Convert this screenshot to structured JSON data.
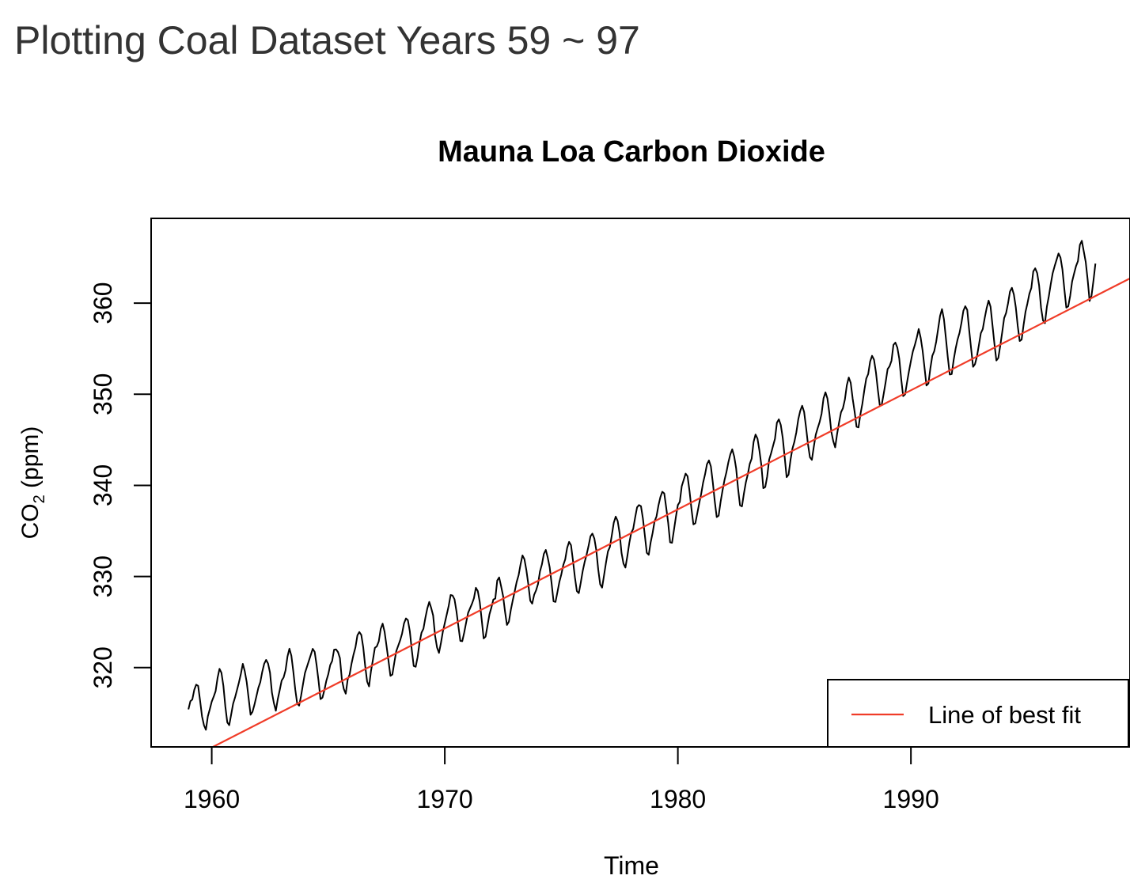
{
  "page": {
    "heading": "Plotting Coal Dataset Years 59 ~ 97"
  },
  "chart_data": {
    "type": "line",
    "title": "Mauna Loa Carbon Dioxide",
    "xlabel": "Time",
    "ylabel": "CO₂ (ppm)",
    "ylabel_parts": {
      "pre": "CO",
      "sub": "2",
      "post": " (ppm)"
    },
    "xlim": [
      1957.4,
      1999.4
    ],
    "ylim": [
      311.3,
      369.3
    ],
    "x_ticks": [
      1960,
      1970,
      1980,
      1990
    ],
    "y_ticks": [
      320,
      330,
      340,
      350,
      360
    ],
    "grid": false,
    "legend": {
      "position": "bottom-right",
      "entries": [
        {
          "label": "Line of best fit",
          "color": "#f03c28"
        }
      ]
    },
    "series": [
      {
        "start_year": 1959,
        "frequency": 12,
        "color": "#000000",
        "values": [
          315.42,
          316.31,
          316.5,
          317.56,
          318.13,
          318.0,
          316.39,
          314.65,
          313.68,
          313.18,
          314.66,
          315.43,
          316.27,
          316.81,
          317.42,
          318.87,
          319.87,
          319.43,
          318.01,
          315.74,
          314.0,
          313.68,
          314.84,
          316.03,
          316.73,
          317.54,
          318.38,
          319.31,
          320.42,
          319.61,
          318.42,
          316.63,
          314.83,
          315.16,
          315.94,
          316.85,
          317.78,
          318.4,
          319.53,
          320.42,
          320.85,
          320.45,
          319.45,
          317.25,
          316.11,
          315.27,
          316.53,
          317.53,
          318.58,
          318.92,
          319.7,
          321.22,
          322.08,
          321.31,
          319.58,
          317.61,
          316.05,
          315.83,
          316.91,
          318.2,
          319.41,
          320.07,
          320.74,
          321.4,
          322.06,
          321.73,
          320.27,
          318.54,
          316.54,
          316.71,
          317.53,
          318.55,
          319.27,
          320.28,
          320.73,
          321.97,
          322.0,
          321.71,
          321.05,
          318.71,
          317.66,
          317.14,
          318.7,
          319.25,
          320.46,
          321.43,
          322.23,
          323.54,
          323.91,
          323.59,
          322.24,
          320.2,
          318.48,
          317.94,
          319.63,
          320.87,
          322.17,
          322.34,
          322.88,
          324.25,
          324.83,
          323.93,
          322.38,
          320.76,
          319.1,
          319.24,
          320.56,
          321.8,
          322.4,
          322.99,
          323.73,
          324.86,
          325.4,
          325.2,
          323.98,
          321.95,
          320.18,
          320.09,
          321.16,
          322.74,
          323.83,
          324.26,
          325.47,
          326.5,
          327.21,
          326.54,
          325.72,
          323.5,
          322.22,
          321.62,
          322.69,
          323.95,
          324.89,
          325.82,
          326.77,
          327.97,
          327.91,
          327.5,
          326.18,
          324.53,
          322.93,
          322.9,
          323.85,
          324.96,
          326.01,
          326.51,
          327.01,
          327.62,
          328.76,
          328.4,
          327.2,
          325.27,
          323.2,
          323.4,
          324.63,
          325.85,
          326.6,
          327.47,
          327.58,
          329.56,
          329.9,
          328.92,
          327.88,
          326.16,
          324.68,
          325.04,
          326.34,
          327.39,
          328.37,
          329.4,
          330.14,
          331.33,
          332.31,
          331.9,
          330.7,
          329.15,
          327.35,
          327.02,
          327.99,
          328.48,
          329.18,
          330.55,
          331.32,
          332.48,
          332.92,
          332.08,
          331.01,
          329.23,
          327.27,
          327.21,
          328.29,
          329.41,
          330.23,
          331.25,
          331.87,
          333.14,
          333.8,
          333.43,
          331.73,
          329.9,
          328.4,
          328.17,
          329.32,
          330.59,
          331.58,
          332.39,
          333.33,
          334.41,
          334.71,
          334.17,
          332.89,
          330.77,
          329.14,
          328.78,
          330.14,
          331.52,
          332.75,
          333.24,
          334.53,
          335.9,
          336.57,
          336.1,
          334.76,
          332.59,
          331.42,
          330.98,
          332.24,
          333.68,
          334.8,
          335.22,
          336.47,
          337.59,
          337.84,
          337.72,
          336.37,
          334.51,
          332.6,
          332.38,
          333.75,
          334.78,
          336.05,
          336.59,
          337.79,
          338.71,
          339.3,
          339.12,
          337.56,
          335.92,
          333.75,
          333.7,
          335.12,
          336.56,
          337.84,
          338.19,
          339.91,
          340.6,
          341.29,
          341.0,
          339.39,
          337.43,
          335.72,
          335.84,
          336.93,
          338.04,
          339.06,
          340.3,
          341.21,
          342.33,
          342.74,
          342.08,
          340.32,
          338.26,
          336.52,
          336.68,
          338.19,
          339.44,
          340.57,
          341.44,
          342.53,
          343.39,
          343.96,
          343.18,
          341.88,
          339.65,
          337.81,
          337.69,
          339.09,
          340.32,
          341.2,
          342.35,
          342.93,
          344.77,
          345.58,
          345.14,
          343.81,
          342.21,
          339.69,
          339.82,
          340.98,
          342.82,
          343.52,
          344.33,
          345.11,
          346.88,
          347.25,
          346.62,
          345.22,
          343.11,
          340.9,
          341.18,
          342.8,
          344.04,
          344.79,
          345.82,
          347.25,
          348.17,
          348.74,
          348.07,
          346.38,
          344.51,
          343.09,
          342.8,
          344.24,
          345.56,
          346.29,
          346.96,
          347.86,
          349.55,
          350.21,
          349.54,
          347.94,
          345.91,
          344.86,
          344.17,
          345.66,
          346.9,
          348.02,
          348.47,
          349.42,
          350.99,
          351.84,
          351.25,
          349.52,
          348.1,
          346.44,
          346.36,
          347.81,
          348.96,
          350.43,
          351.72,
          352.22,
          353.59,
          354.22,
          353.79,
          352.39,
          350.44,
          348.72,
          348.88,
          350.07,
          351.34,
          352.76,
          353.07,
          353.68,
          355.42,
          355.67,
          355.13,
          353.9,
          351.67,
          349.8,
          349.99,
          351.3,
          352.53,
          353.66,
          354.7,
          355.39,
          356.2,
          357.16,
          356.22,
          354.82,
          352.91,
          350.96,
          351.18,
          352.83,
          354.21,
          354.72,
          355.75,
          357.16,
          358.6,
          359.34,
          358.24,
          356.17,
          354.03,
          352.16,
          352.21,
          353.75,
          354.99,
          355.99,
          356.72,
          357.81,
          359.15,
          359.66,
          359.25,
          357.03,
          355.0,
          353.01,
          353.31,
          354.16,
          355.4,
          356.7,
          357.16,
          358.38,
          359.46,
          360.28,
          359.6,
          357.57,
          355.52,
          353.7,
          353.98,
          355.33,
          356.8,
          358.36,
          358.91,
          359.97,
          361.26,
          361.68,
          360.95,
          359.55,
          357.49,
          355.84,
          356.0,
          357.59,
          359.05,
          359.98,
          361.03,
          361.66,
          363.48,
          363.82,
          363.3,
          361.94,
          359.5,
          358.11,
          357.8,
          359.61,
          360.74,
          362.09,
          363.29,
          364.06,
          364.76,
          365.45,
          365.01,
          363.7,
          361.54,
          359.51,
          359.65,
          360.8,
          362.38,
          363.23,
          364.06,
          364.61,
          366.4,
          366.84,
          365.68,
          364.52,
          362.57,
          360.24,
          360.83,
          362.49,
          364.34
        ]
      },
      {
        "name": "Line of best fit",
        "color": "#f03c28",
        "kind": "regression",
        "fit": {
          "slope": 1.3066,
          "intercept": -2249.7
        }
      }
    ]
  }
}
